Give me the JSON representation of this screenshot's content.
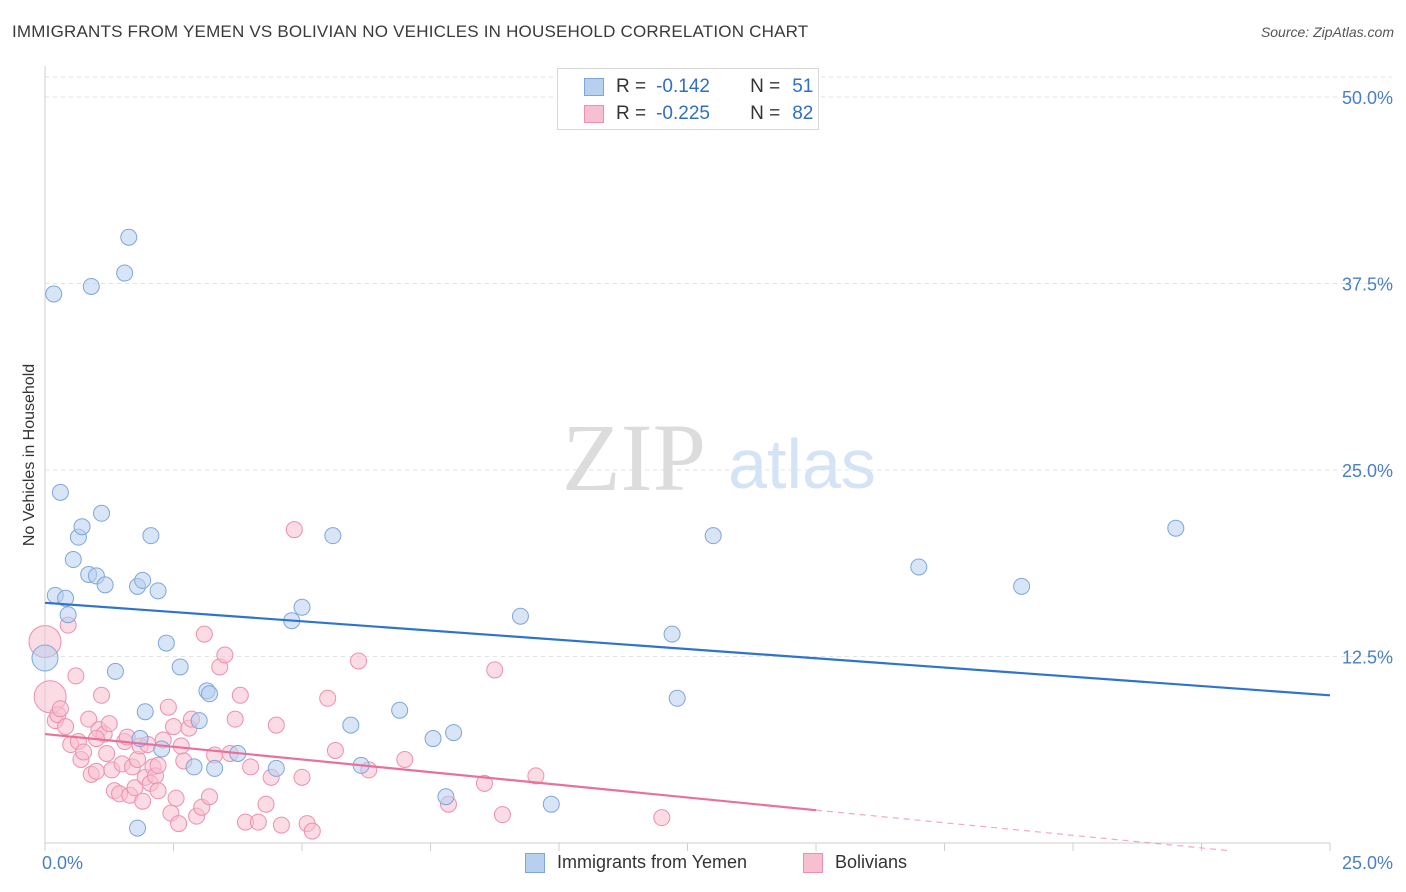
{
  "header": {
    "title": "IMMIGRANTS FROM YEMEN VS BOLIVIAN NO VEHICLES IN HOUSEHOLD CORRELATION CHART",
    "source": "Source: ZipAtlas.com"
  },
  "watermark": {
    "zip": "ZIP",
    "atlas": "atlas"
  },
  "legend": {
    "rows": [
      {
        "r_label": "R =",
        "r_value": "-0.142",
        "n_label": "N =",
        "n_value": "51"
      },
      {
        "r_label": "R =",
        "r_value": "-0.225",
        "n_label": "N =",
        "n_value": "82"
      }
    ]
  },
  "colors": {
    "blue_fill": "#b8d0ef",
    "blue_stroke": "#7ea6dc",
    "blue_line": "#2f74cc",
    "pink_fill": "#f8bfd0",
    "pink_stroke": "#ee8fae",
    "pink_line": "#e8709a",
    "axis_label": "#4a7fc8",
    "grid": "#e2e2e2"
  },
  "chart_data": {
    "type": "scatter",
    "title": "IMMIGRANTS FROM YEMEN VS BOLIVIAN NO VEHICLES IN HOUSEHOLD CORRELATION CHART",
    "xlabel": "",
    "ylabel": "No Vehicles in Household",
    "xlim": [
      0,
      25
    ],
    "ylim": [
      0,
      50
    ],
    "x_tick_labels": [
      "0.0%",
      "25.0%"
    ],
    "y_tick_labels": [
      "12.5%",
      "25.0%",
      "37.5%",
      "50.0%"
    ],
    "y_ticks": [
      12.5,
      25,
      37.5,
      50
    ],
    "legend_position": "top-center",
    "series": [
      {
        "name": "Immigrants from Yemen",
        "r": -0.142,
        "n": 51,
        "trend": {
          "x0": 0,
          "y0": 16.1,
          "x1": 25,
          "y1": 9.9
        },
        "points": [
          [
            0.0,
            12.4
          ],
          [
            0.17,
            36.8
          ],
          [
            0.2,
            16.6
          ],
          [
            0.3,
            23.5
          ],
          [
            0.4,
            16.4
          ],
          [
            0.45,
            15.3
          ],
          [
            0.55,
            19.0
          ],
          [
            0.65,
            20.5
          ],
          [
            0.72,
            21.2
          ],
          [
            0.85,
            18.0
          ],
          [
            0.9,
            37.3
          ],
          [
            1.0,
            17.9
          ],
          [
            1.1,
            22.1
          ],
          [
            1.17,
            17.3
          ],
          [
            1.37,
            11.5
          ],
          [
            1.55,
            38.2
          ],
          [
            1.63,
            40.6
          ],
          [
            1.8,
            17.2
          ],
          [
            1.9,
            17.6
          ],
          [
            1.95,
            8.8
          ],
          [
            2.06,
            20.6
          ],
          [
            2.2,
            16.9
          ],
          [
            2.27,
            6.3
          ],
          [
            2.36,
            13.4
          ],
          [
            2.63,
            11.8
          ],
          [
            2.9,
            5.1
          ],
          [
            3.0,
            8.2
          ],
          [
            3.15,
            10.2
          ],
          [
            3.2,
            10.0
          ],
          [
            3.3,
            5.0
          ],
          [
            3.75,
            6.0
          ],
          [
            4.5,
            5.0
          ],
          [
            4.8,
            14.9
          ],
          [
            5.0,
            15.8
          ],
          [
            5.6,
            20.6
          ],
          [
            5.95,
            7.9
          ],
          [
            6.15,
            5.2
          ],
          [
            6.9,
            8.9
          ],
          [
            7.55,
            7.0
          ],
          [
            7.8,
            3.1
          ],
          [
            7.95,
            7.4
          ],
          [
            9.25,
            15.2
          ],
          [
            9.85,
            2.6
          ],
          [
            12.2,
            14.0
          ],
          [
            12.3,
            9.7
          ],
          [
            13.0,
            20.6
          ],
          [
            17.0,
            18.5
          ],
          [
            19.0,
            17.2
          ],
          [
            22.0,
            21.1
          ],
          [
            1.8,
            1.0
          ],
          [
            1.85,
            7.0
          ]
        ]
      },
      {
        "name": "Bolivians",
        "r": -0.225,
        "n": 82,
        "trend": {
          "x0": 0,
          "y0": 7.3,
          "x1": 15,
          "y1": 2.2
        },
        "trend_dashed": {
          "x0": 15,
          "y0": 2.2,
          "x1": 23,
          "y1": -0.5
        },
        "points": [
          [
            0.0,
            13.5
          ],
          [
            0.1,
            9.8
          ],
          [
            0.2,
            8.2
          ],
          [
            0.25,
            8.6
          ],
          [
            0.3,
            9.0
          ],
          [
            0.4,
            7.8
          ],
          [
            0.45,
            14.6
          ],
          [
            0.5,
            6.6
          ],
          [
            0.6,
            11.2
          ],
          [
            0.65,
            6.8
          ],
          [
            0.7,
            5.6
          ],
          [
            0.75,
            6.1
          ],
          [
            0.85,
            8.3
          ],
          [
            0.9,
            4.6
          ],
          [
            1.0,
            4.8
          ],
          [
            1.05,
            7.6
          ],
          [
            1.1,
            9.9
          ],
          [
            1.15,
            7.3
          ],
          [
            1.2,
            6.0
          ],
          [
            1.25,
            8.0
          ],
          [
            1.3,
            4.9
          ],
          [
            1.35,
            3.5
          ],
          [
            1.45,
            3.3
          ],
          [
            1.5,
            5.3
          ],
          [
            1.55,
            6.8
          ],
          [
            1.6,
            7.1
          ],
          [
            1.65,
            3.2
          ],
          [
            1.7,
            5.1
          ],
          [
            1.75,
            3.7
          ],
          [
            1.8,
            5.6
          ],
          [
            1.85,
            6.5
          ],
          [
            1.9,
            2.8
          ],
          [
            1.95,
            4.4
          ],
          [
            2.0,
            6.6
          ],
          [
            2.05,
            4.0
          ],
          [
            2.1,
            5.1
          ],
          [
            2.15,
            4.5
          ],
          [
            2.2,
            3.5
          ],
          [
            2.3,
            6.9
          ],
          [
            2.4,
            9.1
          ],
          [
            2.45,
            2.0
          ],
          [
            2.5,
            7.8
          ],
          [
            2.55,
            3.0
          ],
          [
            2.6,
            1.3
          ],
          [
            2.65,
            6.5
          ],
          [
            2.7,
            5.5
          ],
          [
            2.8,
            7.7
          ],
          [
            2.85,
            8.3
          ],
          [
            2.95,
            1.8
          ],
          [
            3.05,
            2.4
          ],
          [
            3.1,
            14.0
          ],
          [
            3.2,
            3.1
          ],
          [
            3.3,
            5.9
          ],
          [
            3.4,
            11.8
          ],
          [
            3.5,
            12.6
          ],
          [
            3.6,
            6.0
          ],
          [
            3.7,
            8.3
          ],
          [
            3.8,
            9.9
          ],
          [
            3.9,
            1.4
          ],
          [
            4.0,
            5.1
          ],
          [
            4.15,
            1.4
          ],
          [
            4.3,
            2.6
          ],
          [
            4.4,
            4.4
          ],
          [
            4.5,
            7.9
          ],
          [
            4.6,
            1.2
          ],
          [
            4.85,
            21.0
          ],
          [
            5.1,
            1.3
          ],
          [
            5.2,
            0.8
          ],
          [
            5.5,
            9.7
          ],
          [
            5.65,
            6.2
          ],
          [
            6.1,
            12.2
          ],
          [
            6.3,
            4.9
          ],
          [
            7.0,
            5.6
          ],
          [
            7.85,
            2.6
          ],
          [
            8.55,
            4.0
          ],
          [
            8.75,
            11.6
          ],
          [
            8.9,
            1.9
          ],
          [
            9.55,
            4.5
          ],
          [
            12.0,
            1.7
          ],
          [
            5.0,
            4.4
          ],
          [
            2.2,
            5.2
          ],
          [
            1.0,
            7.0
          ]
        ]
      }
    ]
  },
  "bottom_legend": {
    "items": [
      "Immigrants from Yemen",
      "Bolivians"
    ]
  }
}
